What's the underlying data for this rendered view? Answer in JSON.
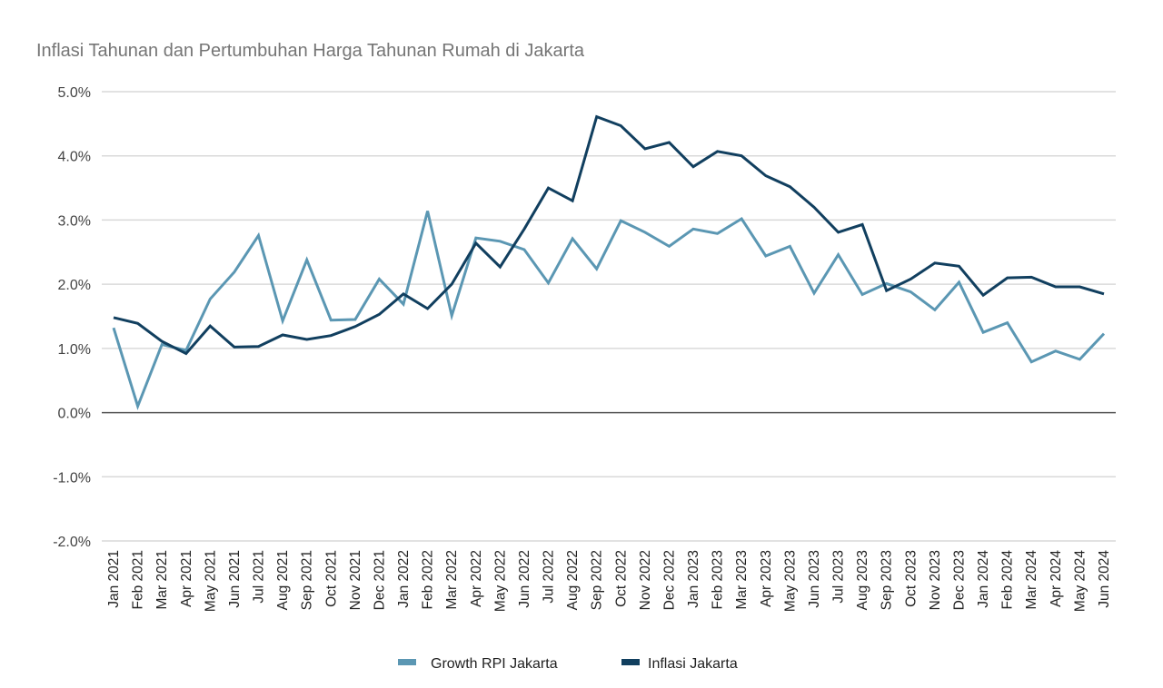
{
  "chart_data": {
    "type": "line",
    "title": "Inflasi Tahunan dan Pertumbuhan Harga Tahunan Rumah di Jakarta",
    "xlabel": "",
    "ylabel": "",
    "ylim": [
      -2.0,
      5.0
    ],
    "yticks": [
      "5.0%",
      "4.0%",
      "3.0%",
      "2.0%",
      "1.0%",
      "0.0%",
      "-1.0%",
      "-2.0%"
    ],
    "ytick_values": [
      5.0,
      4.0,
      3.0,
      2.0,
      1.0,
      0.0,
      -1.0,
      -2.0
    ],
    "grid": true,
    "legend_position": "bottom",
    "categories": [
      "Jan 2021",
      "Feb 2021",
      "Mar 2021",
      "Apr 2021",
      "May 2021",
      "Jun 2021",
      "Jul 2021",
      "Aug 2021",
      "Sep 2021",
      "Oct 2021",
      "Nov 2021",
      "Dec 2021",
      "Jan 2022",
      "Feb 2022",
      "Mar 2022",
      "Apr 2022",
      "May 2022",
      "Jun 2022",
      "Jul 2022",
      "Aug 2022",
      "Sep 2022",
      "Oct 2022",
      "Nov 2022",
      "Dec 2022",
      "Jan 2023",
      "Feb 2023",
      "Mar 2023",
      "Apr 2023",
      "May 2023",
      "Jun 2023",
      "Jul 2023",
      "Aug 2023",
      "Sep 2023",
      "Oct 2023",
      "Nov 2023",
      "Dec 2023",
      "Jan 2024",
      "Feb 2024",
      "Mar 2024",
      "Apr 2024",
      "May 2024",
      "Jun 2024"
    ],
    "series": [
      {
        "name": "Growth RPI Jakarta",
        "color": "#5b97b3",
        "values": [
          1.32,
          0.1,
          1.06,
          0.97,
          1.77,
          2.19,
          2.76,
          1.43,
          2.38,
          1.44,
          1.45,
          2.08,
          1.69,
          3.14,
          1.51,
          2.72,
          2.67,
          2.54,
          2.02,
          2.71,
          2.24,
          2.99,
          2.81,
          2.59,
          2.86,
          2.79,
          3.02,
          2.44,
          2.59,
          1.86,
          2.46,
          1.84,
          2.01,
          1.88,
          1.6,
          2.03,
          1.25,
          1.4,
          0.79,
          0.96,
          0.83,
          1.23
        ]
      },
      {
        "name": "Inflasi Jakarta",
        "color": "#113f5f",
        "values": [
          1.48,
          1.39,
          1.11,
          0.92,
          1.35,
          1.02,
          1.03,
          1.21,
          1.14,
          1.2,
          1.34,
          1.53,
          1.85,
          1.62,
          2.0,
          2.64,
          2.27,
          2.86,
          3.5,
          3.3,
          4.61,
          4.47,
          4.11,
          4.21,
          3.83,
          4.07,
          4.0,
          3.69,
          3.52,
          3.2,
          2.81,
          2.93,
          1.9,
          2.08,
          2.33,
          2.28,
          1.83,
          2.1,
          2.11,
          1.96,
          1.96,
          1.85
        ]
      }
    ]
  }
}
